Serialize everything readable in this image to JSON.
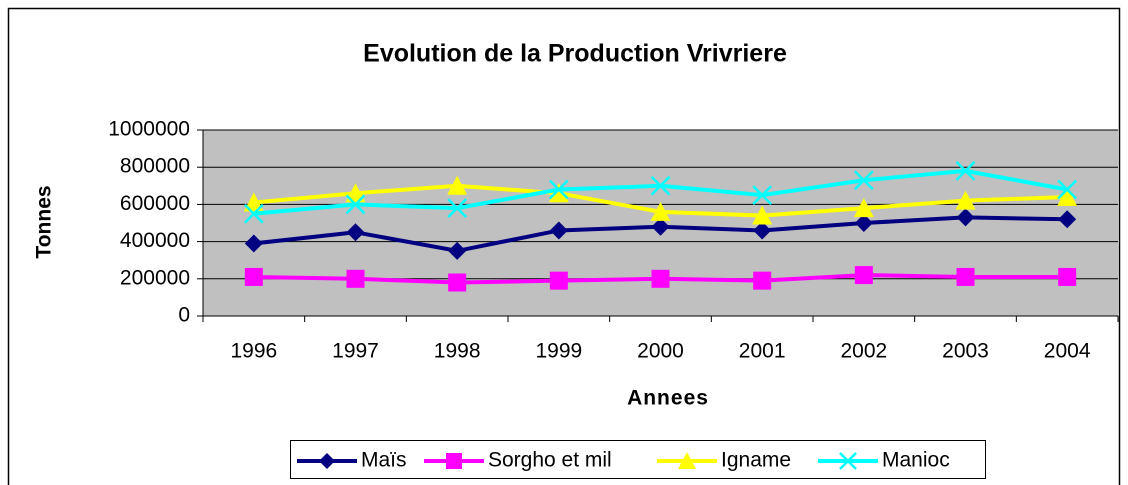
{
  "chart_data": {
    "type": "line",
    "title": "Evolution de la Production Vrivriere",
    "x_label": "Annees",
    "y_label": "Tonnes",
    "categories": [
      "1996",
      "1997",
      "1998",
      "1999",
      "2000",
      "2001",
      "2002",
      "2003",
      "2004"
    ],
    "series": [
      {
        "name": "Maïs",
        "color": "#000080",
        "marker": "diamond",
        "values": [
          390000,
          450000,
          350000,
          460000,
          480000,
          460000,
          500000,
          530000,
          520000
        ]
      },
      {
        "name": "Sorgho et mil",
        "color": "#FF00FF",
        "marker": "square",
        "values": [
          210000,
          200000,
          180000,
          190000,
          200000,
          190000,
          220000,
          210000,
          210000
        ]
      },
      {
        "name": "Igname",
        "color": "#FFFF00",
        "marker": "triangle",
        "values": [
          610000,
          660000,
          700000,
          660000,
          560000,
          540000,
          580000,
          620000,
          640000
        ]
      },
      {
        "name": "Manioc",
        "color": "#00FFFF",
        "marker": "x",
        "values": [
          550000,
          600000,
          580000,
          680000,
          700000,
          650000,
          730000,
          780000,
          680000
        ]
      }
    ],
    "ylim": [
      0,
      1000000
    ],
    "yticks": [
      0,
      200000,
      400000,
      600000,
      800000,
      1000000
    ],
    "grid": true,
    "legend": "bottom"
  }
}
